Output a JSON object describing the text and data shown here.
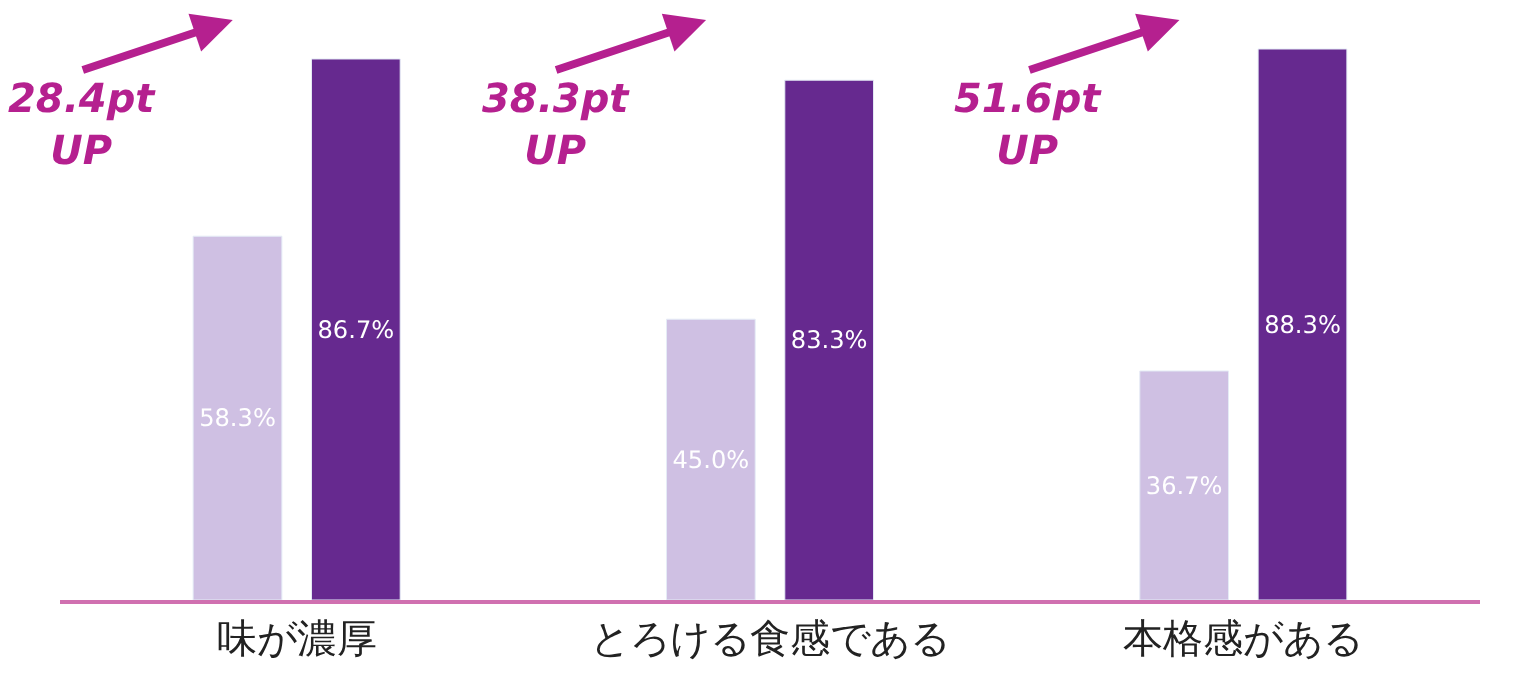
{
  "chart_data": {
    "type": "bar",
    "categories": [
      "味が濃厚",
      "とろける食感である",
      "本格感がある"
    ],
    "series": [
      {
        "color": "#cfc0e3",
        "values": [
          58.3,
          45.0,
          36.7
        ],
        "value_labels": [
          "58.3%",
          "45.0%",
          "36.7%"
        ]
      },
      {
        "color": "#66298f",
        "values": [
          86.7,
          83.3,
          88.3
        ],
        "value_labels": [
          "86.7%",
          "83.3%",
          "88.3%"
        ]
      }
    ],
    "tick_labels": "x",
    "annotations": [
      "28.4pt UP",
      "38.3pt UP",
      "51.6pt UP"
    ]
  }
}
